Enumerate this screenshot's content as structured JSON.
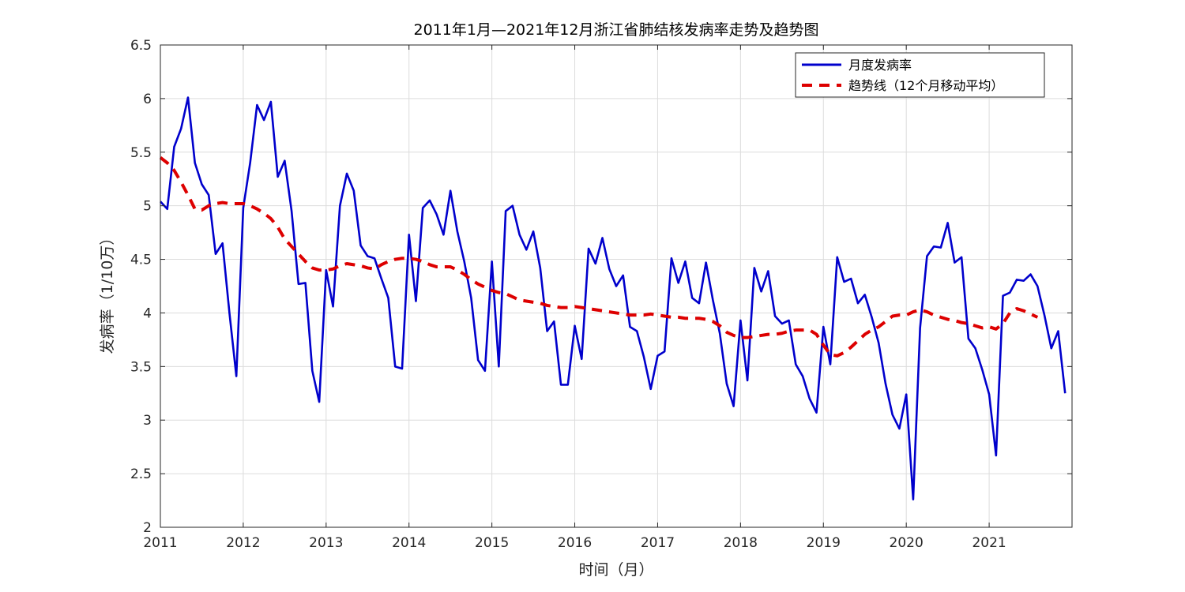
{
  "chart_data": {
    "type": "line",
    "title": "2011年1月—2021年12月浙江省肺结核发病率走势及趋势图",
    "xlabel": "时间（月）",
    "ylabel": "发病率（1/10万）",
    "ylim": [
      2,
      6.5
    ],
    "yticks": [
      "2",
      "2.5",
      "3",
      "3.5",
      "4",
      "4.5",
      "5",
      "5.5",
      "6",
      "6.5"
    ],
    "xlim_months": [
      0,
      132
    ],
    "xticks": [
      "2011",
      "2012",
      "2013",
      "2014",
      "2015",
      "2016",
      "2017",
      "2018",
      "2019",
      "2020",
      "2021"
    ],
    "grid": true,
    "legend_position": "top-right",
    "x_start": "2011-01",
    "x_step": "month",
    "series": [
      {
        "name": "月度发病率",
        "color": "#0000cc",
        "style": "solid",
        "values": [
          5.04,
          4.97,
          5.55,
          5.72,
          6.01,
          5.4,
          5.2,
          5.1,
          4.55,
          4.65,
          4.0,
          3.41,
          4.98,
          5.4,
          5.94,
          5.8,
          5.97,
          5.27,
          5.42,
          4.95,
          4.27,
          4.28,
          3.46,
          3.17,
          4.4,
          4.06,
          5.0,
          5.3,
          5.14,
          4.63,
          4.53,
          4.51,
          4.32,
          4.14,
          3.5,
          3.48,
          4.73,
          4.11,
          4.98,
          5.05,
          4.92,
          4.73,
          5.14,
          4.76,
          4.48,
          4.14,
          3.56,
          3.46,
          4.48,
          3.5,
          4.95,
          5.0,
          4.73,
          4.59,
          4.76,
          4.42,
          3.83,
          3.92,
          3.33,
          3.33,
          3.88,
          3.57,
          4.6,
          4.46,
          4.7,
          4.41,
          4.25,
          4.35,
          3.87,
          3.83,
          3.59,
          3.29,
          3.6,
          3.64,
          4.51,
          4.28,
          4.48,
          4.14,
          4.09,
          4.47,
          4.12,
          3.81,
          3.34,
          3.13,
          3.93,
          3.37,
          4.42,
          4.2,
          4.39,
          3.97,
          3.9,
          3.93,
          3.52,
          3.41,
          3.2,
          3.07,
          3.87,
          3.52,
          4.52,
          4.29,
          4.32,
          4.09,
          4.17,
          3.96,
          3.72,
          3.34,
          3.05,
          2.92,
          3.24,
          2.26,
          3.86,
          4.53,
          4.62,
          4.61,
          4.84,
          4.47,
          4.52,
          3.76,
          3.67,
          3.47,
          3.24,
          2.67,
          4.16,
          4.19,
          4.31,
          4.3,
          4.36,
          4.25,
          3.98,
          3.67,
          3.83,
          3.25
        ]
      },
      {
        "name": "趋势线（12个月移动平均）",
        "color": "#dd0000",
        "style": "dashed",
        "values": [
          5.45,
          5.4,
          5.33,
          5.22,
          5.1,
          4.97,
          4.96,
          5.0,
          5.02,
          5.03,
          5.02,
          5.02,
          5.02,
          5.0,
          4.97,
          4.93,
          4.88,
          4.8,
          4.69,
          4.62,
          4.55,
          4.48,
          4.42,
          4.4,
          4.4,
          4.41,
          4.44,
          4.46,
          4.45,
          4.44,
          4.42,
          4.41,
          4.45,
          4.48,
          4.5,
          4.51,
          4.51,
          4.5,
          4.48,
          4.45,
          4.43,
          4.43,
          4.43,
          4.4,
          4.36,
          4.31,
          4.27,
          4.24,
          4.21,
          4.19,
          4.18,
          4.15,
          4.12,
          4.11,
          4.1,
          4.09,
          4.07,
          4.06,
          4.05,
          4.05,
          4.06,
          4.05,
          4.04,
          4.03,
          4.02,
          4.01,
          4.0,
          3.99,
          3.98,
          3.98,
          3.98,
          3.99,
          3.98,
          3.97,
          3.96,
          3.96,
          3.95,
          3.95,
          3.95,
          3.94,
          3.92,
          3.88,
          3.82,
          3.79,
          3.77,
          3.77,
          3.78,
          3.79,
          3.8,
          3.8,
          3.81,
          3.83,
          3.84,
          3.84,
          3.84,
          3.8,
          3.7,
          3.61,
          3.6,
          3.63,
          3.68,
          3.74,
          3.8,
          3.84,
          3.87,
          3.92,
          3.97,
          3.98,
          3.98,
          4.01,
          4.03,
          4.01,
          3.98,
          3.96,
          3.94,
          3.93,
          3.91,
          3.9,
          3.88,
          3.86,
          3.87,
          3.85,
          3.9,
          4.0,
          4.04,
          4.02,
          3.99,
          3.96
        ]
      }
    ]
  }
}
